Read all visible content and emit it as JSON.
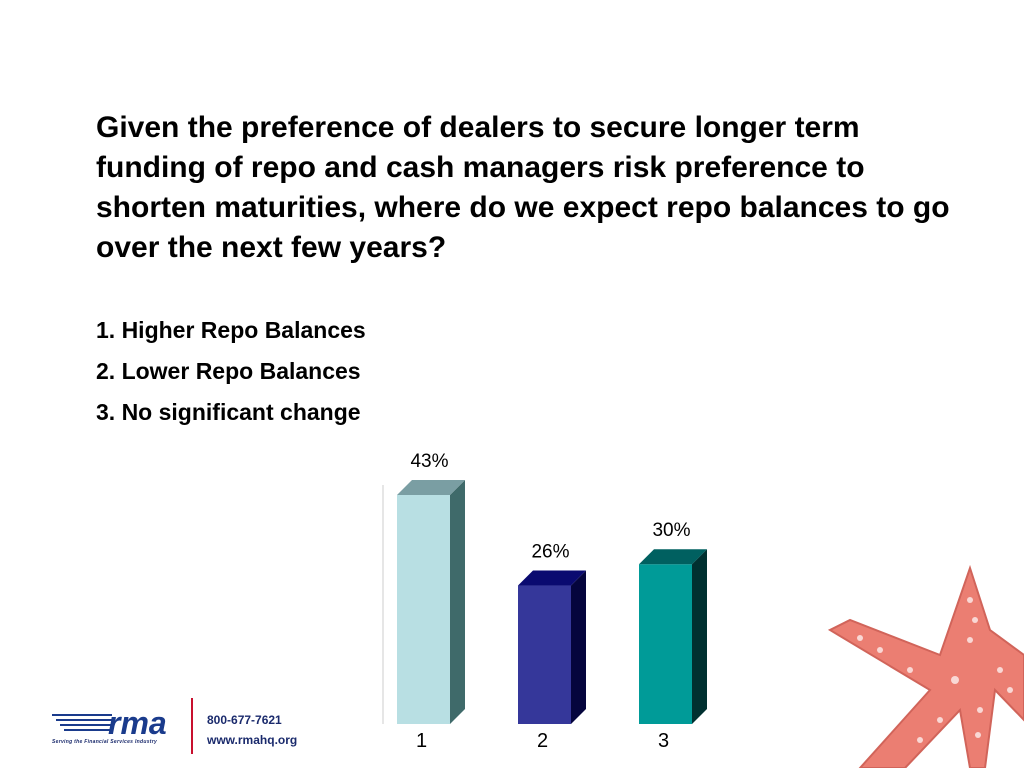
{
  "question": "Given the preference of dealers to secure longer term  funding of repo and cash managers risk preference to shorten maturities, where do we expect repo balances to go over the next few years?",
  "options": [
    "1. Higher Repo Balances",
    "2. Lower Repo Balances",
    "3. No significant change"
  ],
  "chart_data": {
    "type": "bar",
    "categories": [
      "1",
      "2",
      "3"
    ],
    "values": [
      43,
      26,
      30
    ],
    "value_labels": [
      "43%",
      "26%",
      "30%"
    ],
    "colors": [
      "#b8dfe3",
      "#35379a",
      "#009b98"
    ],
    "side_colors": [
      "#3f6a6a",
      "#05053d",
      "#003030"
    ],
    "top_colors": [
      "#7a9ea3",
      "#0a0a70",
      "#006060"
    ],
    "ylim": [
      0,
      43
    ],
    "grid": false
  },
  "footer": {
    "logo_text": "rma",
    "tagline": "Serving the Financial Services Industry",
    "phone": "800-677-7621",
    "website": "www.rmahq.org"
  },
  "decor": {
    "starfish_color": "#e8685a"
  }
}
